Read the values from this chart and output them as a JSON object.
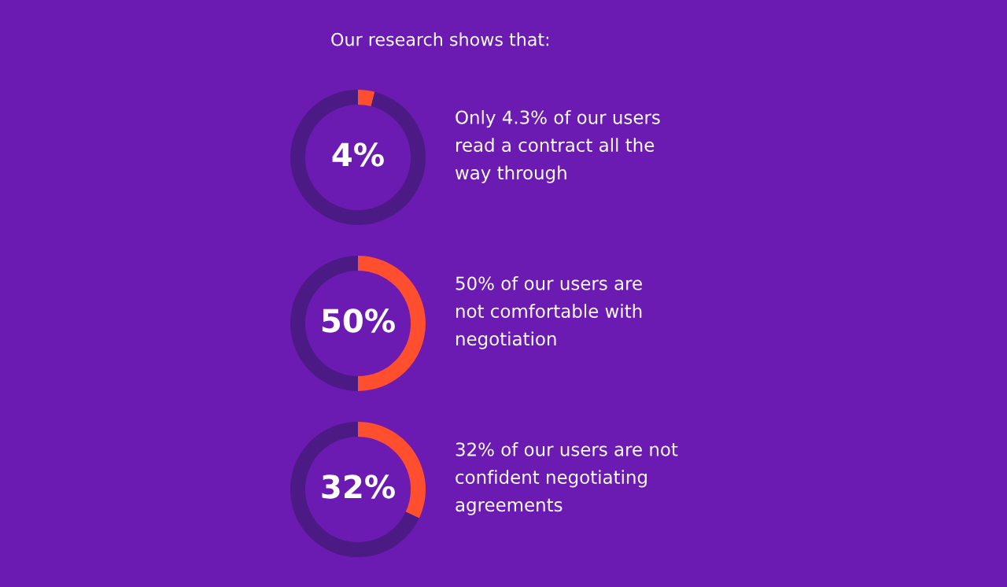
{
  "chart_data": [
    {
      "type": "donut",
      "title": "Our research shows that:",
      "categories": [
        null,
        null
      ],
      "values": [
        4,
        96
      ],
      "colors": [
        "#ff4f2e",
        "#4b1a85"
      ],
      "value_labels": [
        "4%",
        null
      ],
      "annotations": [
        "Only 4.3% of our users\nread a contract all the\nway through"
      ]
    },
    {
      "type": "donut",
      "categories": [
        null,
        null
      ],
      "values": [
        50,
        50
      ],
      "colors": [
        "#ff4f2e",
        "#4b1a85"
      ],
      "value_labels": [
        "50%",
        null
      ],
      "annotations": [
        "50% of our users are\nnot comfortable with\nnegotiation"
      ]
    },
    {
      "type": "donut",
      "categories": [
        null,
        null
      ],
      "values": [
        32,
        68
      ],
      "colors": [
        "#ff4f2e",
        "#4b1a85"
      ],
      "value_labels": [
        "32%",
        null
      ],
      "annotations": [
        "32% of our users are not\nconfident negotiating\nagreements"
      ]
    }
  ]
}
